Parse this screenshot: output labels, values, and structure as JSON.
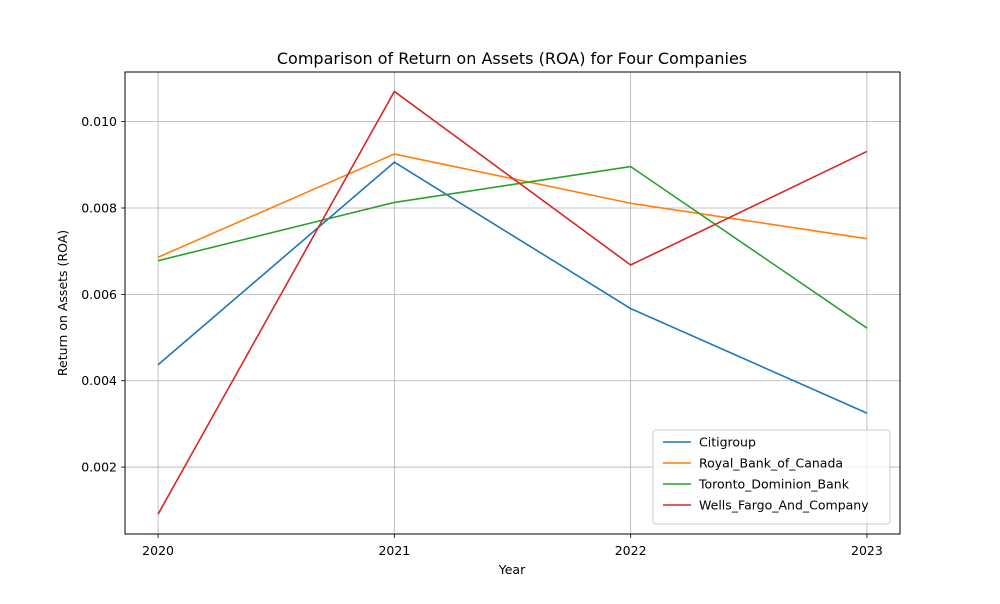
{
  "chart_data": {
    "type": "line",
    "title": "Comparison of Return on Assets (ROA) for Four Companies",
    "xlabel": "Year",
    "ylabel": "Return on Assets (ROA)",
    "categories": [
      "2020",
      "2021",
      "2022",
      "2023"
    ],
    "x": [
      2020,
      2021,
      2022,
      2023
    ],
    "xlim": [
      2019.86,
      2023.14
    ],
    "ylim": [
      0.00045,
      0.01115
    ],
    "yticks": [
      0.002,
      0.004,
      0.006,
      0.008,
      0.01
    ],
    "ytick_labels": [
      "0.002",
      "0.004",
      "0.006",
      "0.008",
      "0.010"
    ],
    "grid": true,
    "legend_position": "lower right",
    "series": [
      {
        "name": "Citigroup",
        "color": "#1f77b4",
        "values": [
          0.00437,
          0.00906,
          0.00567,
          0.00325
        ]
      },
      {
        "name": "Royal_Bank_of_Canada",
        "color": "#ff7f0e",
        "values": [
          0.00686,
          0.00925,
          0.00811,
          0.00729
        ]
      },
      {
        "name": "Toronto_Dominion_Bank",
        "color": "#2ca02c",
        "values": [
          0.00678,
          0.00813,
          0.00896,
          0.00522
        ]
      },
      {
        "name": "Wells_Fargo_And_Company",
        "color": "#d62728",
        "values": [
          0.00091,
          0.0107,
          0.00668,
          0.00931
        ]
      }
    ]
  }
}
